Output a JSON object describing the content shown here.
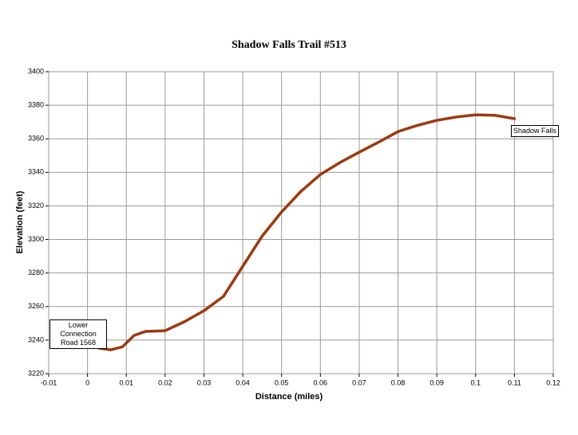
{
  "chart_data": {
    "type": "line",
    "title": "Shadow Falls Trail #513",
    "x_label": "Distance (miles)",
    "y_label": "Elevation (feet)",
    "x": [
      0,
      0.003,
      0.006,
      0.009,
      0.012,
      0.015,
      0.02,
      0.025,
      0.03,
      0.035,
      0.04,
      0.045,
      0.05,
      0.055,
      0.06,
      0.065,
      0.07,
      0.075,
      0.08,
      0.085,
      0.09,
      0.095,
      0.1,
      0.105,
      0.11
    ],
    "series": [
      {
        "name": "Elevation",
        "color": "#9c3a10",
        "values": [
          3238,
          3235.2,
          3234.2,
          3236,
          3242.8,
          3245.2,
          3245.6,
          3251,
          3257.5,
          3266,
          3284,
          3302,
          3316.4,
          3328.7,
          3338.7,
          3345.8,
          3352,
          3358,
          3364.3,
          3368,
          3371,
          3373,
          3374.3,
          3374,
          3372
        ]
      }
    ],
    "xlim": [
      -0.01,
      0.12
    ],
    "xticks": [
      -0.01,
      0,
      0.01,
      0.02,
      0.03,
      0.04,
      0.05,
      0.06,
      0.07,
      0.08,
      0.09,
      0.1,
      0.11,
      0.12
    ],
    "ylim": [
      3220,
      3400
    ],
    "yticks": [
      3220,
      3240,
      3260,
      3280,
      3300,
      3320,
      3340,
      3360,
      3380,
      3400
    ],
    "grid": true,
    "annotations": [
      {
        "text": "Lower Connection Road 1568"
      },
      {
        "text": "Shadow Falls"
      }
    ]
  }
}
